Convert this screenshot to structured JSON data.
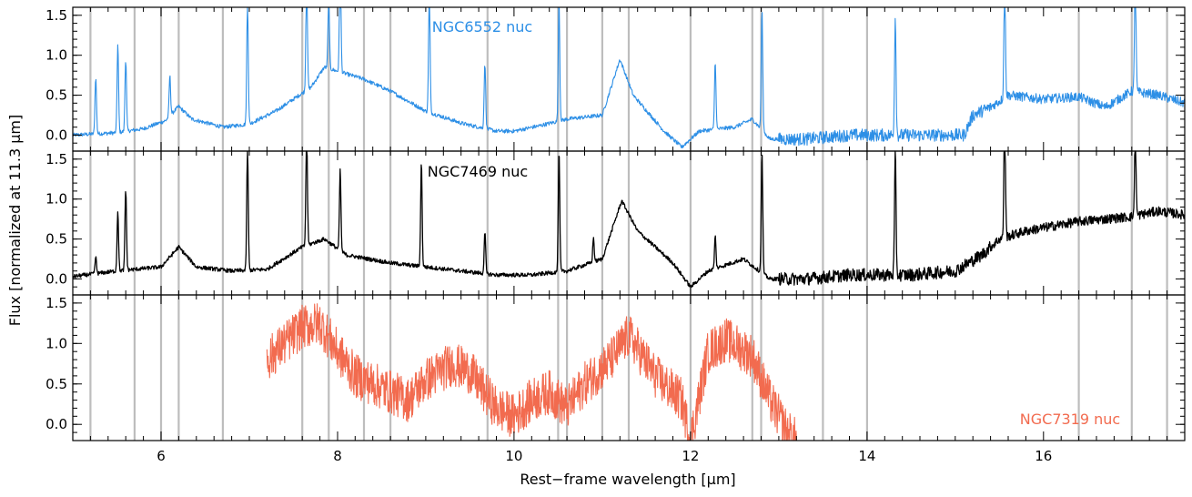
{
  "chart_data": {
    "type": "line",
    "xlabel": "Rest−frame wavelength [μm]",
    "ylabel": "Flux [normalized at 11.3 μm]",
    "xlim": [
      5.0,
      17.6
    ],
    "x_ticks": [
      6,
      8,
      10,
      12,
      14,
      16
    ],
    "x_tick_labels": [
      "6",
      "8",
      "10",
      "12",
      "14",
      "16"
    ],
    "y_ticks": [
      0.0,
      0.5,
      1.0,
      1.5
    ],
    "y_tick_labels": [
      "0.0",
      "0.5",
      "1.0",
      "1.5"
    ],
    "reference_lines_um": [
      5.2,
      5.7,
      6.0,
      6.2,
      6.7,
      7.6,
      7.9,
      8.3,
      8.6,
      9.7,
      10.5,
      10.6,
      11.0,
      11.3,
      12.0,
      12.7,
      12.8,
      13.5,
      14.0,
      16.4,
      17.0,
      17.4
    ],
    "reference_line_color": "#bdbdbd",
    "panels": [
      {
        "name": "NGC6552 nuc",
        "color": "#2d8fe6",
        "ylim": [
          -0.2,
          1.6
        ],
        "label_position": "top-center",
        "features": [
          [
            5.0,
            0.0
          ],
          [
            5.5,
            0.03
          ],
          [
            5.8,
            0.08
          ],
          [
            6.05,
            0.18
          ],
          [
            6.2,
            0.36
          ],
          [
            6.35,
            0.2
          ],
          [
            6.7,
            0.1
          ],
          [
            7.0,
            0.14
          ],
          [
            7.3,
            0.3
          ],
          [
            7.7,
            0.6
          ],
          [
            7.85,
            0.85
          ],
          [
            8.0,
            0.8
          ],
          [
            8.3,
            0.7
          ],
          [
            8.6,
            0.55
          ],
          [
            9.0,
            0.3
          ],
          [
            9.4,
            0.15
          ],
          [
            9.8,
            0.05
          ],
          [
            10.0,
            0.05
          ],
          [
            10.3,
            0.12
          ],
          [
            10.6,
            0.2
          ],
          [
            11.0,
            0.25
          ],
          [
            11.2,
            0.95
          ],
          [
            11.35,
            0.5
          ],
          [
            11.7,
            0.05
          ],
          [
            11.9,
            -0.15
          ],
          [
            12.1,
            0.05
          ],
          [
            12.5,
            0.1
          ],
          [
            12.7,
            0.2
          ],
          [
            12.9,
            -0.05
          ],
          [
            13.3,
            -0.05
          ],
          [
            13.8,
            0.0
          ],
          [
            14.5,
            0.0
          ],
          [
            15.1,
            0.0
          ],
          [
            15.2,
            0.25
          ],
          [
            15.4,
            0.35
          ],
          [
            15.6,
            0.5
          ],
          [
            16.0,
            0.45
          ],
          [
            16.4,
            0.48
          ],
          [
            16.7,
            0.35
          ],
          [
            17.0,
            0.55
          ],
          [
            17.3,
            0.5
          ],
          [
            17.6,
            0.4
          ]
        ],
        "emission_lines": [
          [
            5.26,
            0.8
          ],
          [
            5.51,
            1.2
          ],
          [
            5.6,
            1.0
          ],
          [
            6.1,
            0.6
          ],
          [
            6.98,
            1.6
          ],
          [
            7.65,
            1.6
          ],
          [
            7.9,
            0.95
          ],
          [
            8.03,
            1.6
          ],
          [
            9.04,
            1.6
          ],
          [
            9.67,
            0.9
          ],
          [
            10.51,
            1.6
          ],
          [
            12.28,
            0.95
          ],
          [
            12.81,
            1.6
          ],
          [
            14.32,
            1.6
          ],
          [
            15.56,
            1.6
          ],
          [
            17.04,
            1.6
          ]
        ]
      },
      {
        "name": "NGC7469 nuc",
        "color": "#000000",
        "ylim": [
          -0.2,
          1.6
        ],
        "label_position": "top-center",
        "features": [
          [
            5.0,
            0.03
          ],
          [
            5.5,
            0.1
          ],
          [
            6.0,
            0.15
          ],
          [
            6.2,
            0.4
          ],
          [
            6.4,
            0.15
          ],
          [
            6.8,
            0.1
          ],
          [
            7.2,
            0.12
          ],
          [
            7.6,
            0.4
          ],
          [
            7.85,
            0.5
          ],
          [
            8.1,
            0.3
          ],
          [
            8.6,
            0.2
          ],
          [
            9.0,
            0.15
          ],
          [
            9.4,
            0.1
          ],
          [
            9.8,
            0.05
          ],
          [
            10.2,
            0.05
          ],
          [
            10.6,
            0.1
          ],
          [
            11.0,
            0.25
          ],
          [
            11.22,
            0.98
          ],
          [
            11.4,
            0.6
          ],
          [
            11.8,
            0.2
          ],
          [
            12.0,
            -0.1
          ],
          [
            12.2,
            0.1
          ],
          [
            12.6,
            0.25
          ],
          [
            12.9,
            0.0
          ],
          [
            13.3,
            0.0
          ],
          [
            13.8,
            0.05
          ],
          [
            14.2,
            0.05
          ],
          [
            14.5,
            0.05
          ],
          [
            15.0,
            0.1
          ],
          [
            15.3,
            0.3
          ],
          [
            15.5,
            0.5
          ],
          [
            15.8,
            0.6
          ],
          [
            16.4,
            0.72
          ],
          [
            17.0,
            0.78
          ],
          [
            17.3,
            0.85
          ],
          [
            17.6,
            0.8
          ]
        ],
        "emission_lines": [
          [
            5.26,
            0.3
          ],
          [
            5.51,
            0.85
          ],
          [
            5.6,
            1.1
          ],
          [
            6.98,
            1.6
          ],
          [
            7.65,
            1.6
          ],
          [
            8.03,
            1.1
          ],
          [
            8.95,
            1.4
          ],
          [
            9.67,
            0.6
          ],
          [
            10.51,
            1.6
          ],
          [
            10.9,
            0.4
          ],
          [
            12.28,
            0.5
          ],
          [
            12.81,
            1.6
          ],
          [
            14.32,
            1.6
          ],
          [
            15.56,
            1.6
          ],
          [
            17.04,
            1.1
          ]
        ]
      },
      {
        "name": "NGC7319 nuc",
        "color": "#f26b4f",
        "ylim": [
          -0.2,
          1.6
        ],
        "label_position": "bottom-right",
        "x_range": [
          7.2,
          13.2
        ],
        "features": [
          [
            7.2,
            0.8
          ],
          [
            7.4,
            1.0
          ],
          [
            7.6,
            1.2
          ],
          [
            7.8,
            1.25
          ],
          [
            8.0,
            0.9
          ],
          [
            8.2,
            0.6
          ],
          [
            8.5,
            0.45
          ],
          [
            8.8,
            0.3
          ],
          [
            9.0,
            0.55
          ],
          [
            9.3,
            0.75
          ],
          [
            9.5,
            0.65
          ],
          [
            9.8,
            0.2
          ],
          [
            10.0,
            0.1
          ],
          [
            10.2,
            0.3
          ],
          [
            10.4,
            0.4
          ],
          [
            10.6,
            0.2
          ],
          [
            10.8,
            0.5
          ],
          [
            11.1,
            0.8
          ],
          [
            11.3,
            1.1
          ],
          [
            11.6,
            0.6
          ],
          [
            11.9,
            0.3
          ],
          [
            12.0,
            -0.2
          ],
          [
            12.2,
            0.9
          ],
          [
            12.4,
            1.05
          ],
          [
            12.7,
            0.85
          ],
          [
            12.9,
            0.3
          ],
          [
            13.1,
            -0.1
          ],
          [
            13.2,
            -0.2
          ]
        ]
      }
    ]
  }
}
